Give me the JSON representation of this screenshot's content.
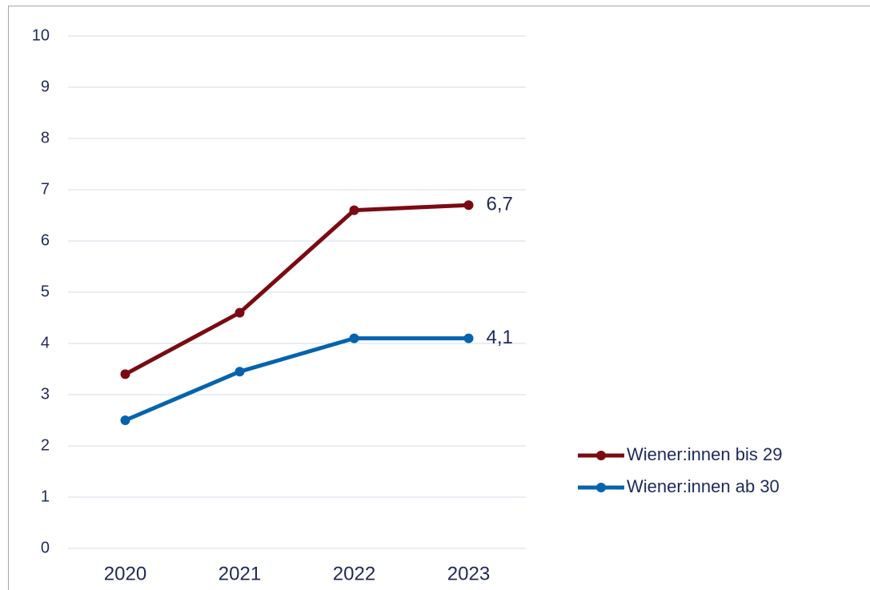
{
  "chart_data": {
    "type": "line",
    "categories": [
      "2020",
      "2021",
      "2022",
      "2023"
    ],
    "series": [
      {
        "name": "Wiener:innen bis 29",
        "color": "#7b0a12",
        "values": [
          3.4,
          4.6,
          6.6,
          6.7
        ],
        "value_labels": [
          null,
          null,
          null,
          "6,7"
        ]
      },
      {
        "name": "Wiener:innen ab 30",
        "color": "#0563ae",
        "values": [
          2.5,
          3.45,
          4.1,
          4.1
        ],
        "value_labels": [
          null,
          null,
          null,
          "4,1"
        ]
      }
    ],
    "ylim": [
      0,
      10
    ],
    "yticks": [
      0,
      1,
      2,
      3,
      4,
      5,
      6,
      7,
      8,
      9,
      10
    ],
    "grid": true,
    "legend": "right"
  }
}
